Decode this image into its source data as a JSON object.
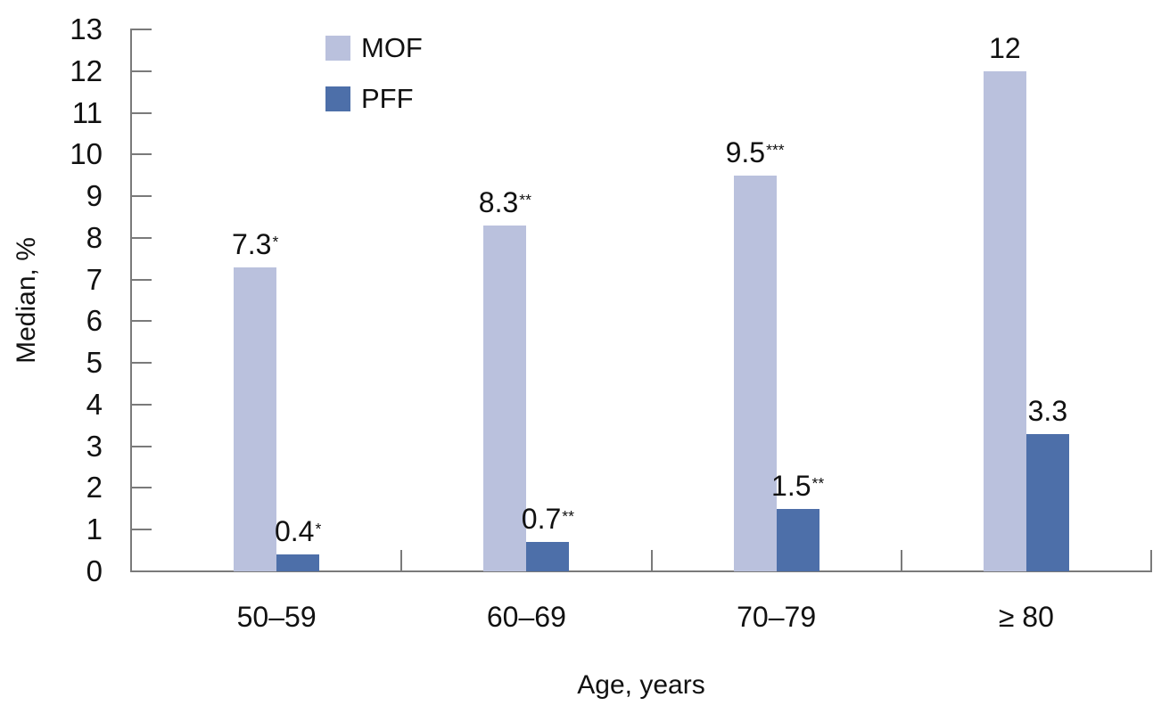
{
  "chart_data": {
    "type": "bar",
    "title": "",
    "xlabel": "Age, years",
    "ylabel": "Median, %",
    "categories": [
      "50–59",
      "60–69",
      "70–79",
      "≥ 80"
    ],
    "series": [
      {
        "name": "MOF",
        "color": "#bac1dd",
        "values": [
          7.3,
          8.3,
          9.5,
          12
        ],
        "value_labels": [
          "7.3",
          "8.3",
          "9.5",
          "12"
        ],
        "significance": [
          "*",
          "**",
          "***",
          ""
        ]
      },
      {
        "name": "PFF",
        "color": "#4d6fa9",
        "values": [
          0.4,
          0.7,
          1.5,
          3.3
        ],
        "value_labels": [
          "0.4",
          "0.7",
          "1.5",
          "3.3"
        ],
        "significance": [
          "*",
          "**",
          "**",
          ""
        ]
      }
    ],
    "ylim": [
      0,
      13
    ],
    "ytick_interval": 1,
    "grid": false,
    "legend_position": "top-inside-left",
    "axis_color": "#7a7a7a",
    "text_color": "#111111"
  }
}
